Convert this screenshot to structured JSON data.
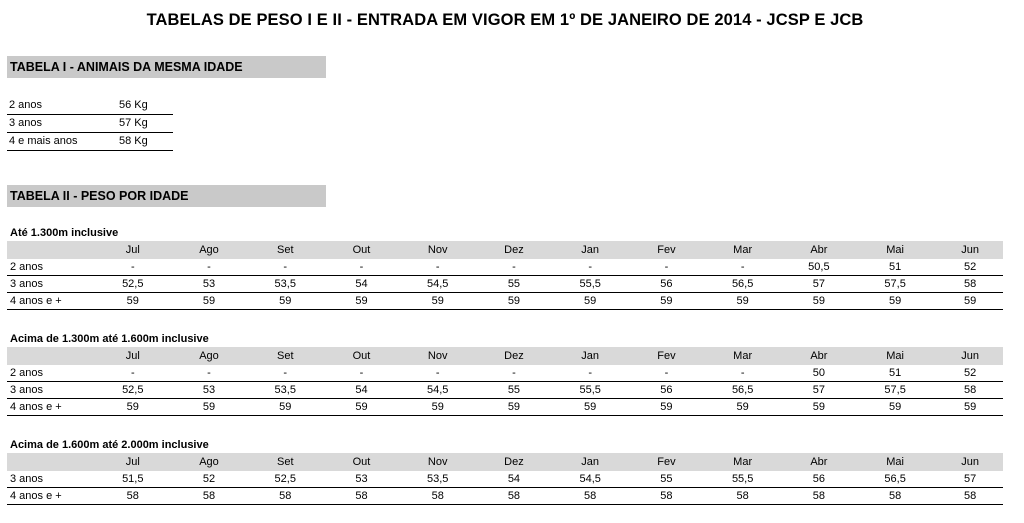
{
  "title": "TABELAS DE PESO I E II - ENTRADA EM VIGOR EM 1º DE JANEIRO DE 2014 - JCSP E JCB",
  "tabela1": {
    "header": "TABELA I - ANIMAIS DA MESMA IDADE",
    "rows": [
      {
        "label": "2 anos",
        "value": "56 Kg"
      },
      {
        "label": "3 anos",
        "value": "57 Kg"
      },
      {
        "label": "4 e mais anos",
        "value": "58 Kg"
      }
    ]
  },
  "tabela2": {
    "header": "TABELA II - PESO POR IDADE",
    "months": [
      "Jul",
      "Ago",
      "Set",
      "Out",
      "Nov",
      "Dez",
      "Jan",
      "Fev",
      "Mar",
      "Abr",
      "Mai",
      "Jun"
    ],
    "groups": [
      {
        "title": "Até 1.300m inclusive",
        "rows": [
          {
            "label": "2 anos",
            "values": [
              "-",
              "-",
              "-",
              "-",
              "-",
              "-",
              "-",
              "-",
              "-",
              "50,5",
              "51",
              "52"
            ]
          },
          {
            "label": "3 anos",
            "values": [
              "52,5",
              "53",
              "53,5",
              "54",
              "54,5",
              "55",
              "55,5",
              "56",
              "56,5",
              "57",
              "57,5",
              "58"
            ]
          },
          {
            "label": "4 anos e +",
            "values": [
              "59",
              "59",
              "59",
              "59",
              "59",
              "59",
              "59",
              "59",
              "59",
              "59",
              "59",
              "59"
            ]
          }
        ]
      },
      {
        "title": "Acima de 1.300m até 1.600m inclusive",
        "rows": [
          {
            "label": "2 anos",
            "values": [
              "-",
              "-",
              "-",
              "-",
              "-",
              "-",
              "-",
              "-",
              "-",
              "50",
              "51",
              "52"
            ]
          },
          {
            "label": "3 anos",
            "values": [
              "52,5",
              "53",
              "53,5",
              "54",
              "54,5",
              "55",
              "55,5",
              "56",
              "56,5",
              "57",
              "57,5",
              "58"
            ]
          },
          {
            "label": "4 anos e +",
            "values": [
              "59",
              "59",
              "59",
              "59",
              "59",
              "59",
              "59",
              "59",
              "59",
              "59",
              "59",
              "59"
            ]
          }
        ]
      },
      {
        "title": "Acima de 1.600m até 2.000m inclusive",
        "rows": [
          {
            "label": "3 anos",
            "values": [
              "51,5",
              "52",
              "52,5",
              "53",
              "53,5",
              "54",
              "54,5",
              "55",
              "55,5",
              "56",
              "56,5",
              "57"
            ]
          },
          {
            "label": "4 anos e +",
            "values": [
              "58",
              "58",
              "58",
              "58",
              "58",
              "58",
              "58",
              "58",
              "58",
              "58",
              "58",
              "58"
            ]
          }
        ]
      }
    ]
  }
}
